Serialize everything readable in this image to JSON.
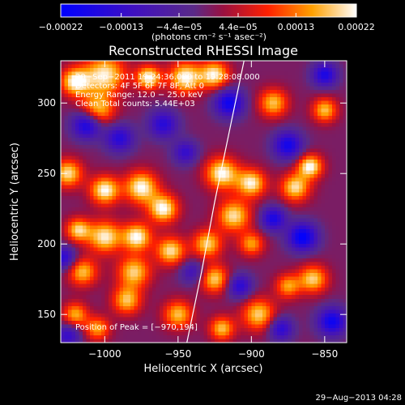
{
  "chart_data": {
    "type": "heatmap",
    "title": "Reconstructed RHESSI Image",
    "xlabel": "Heliocentric X (arcsec)",
    "ylabel": "Heliocentric Y (arcsec)",
    "xlim": [
      -1030,
      -835
    ],
    "ylim": [
      130,
      330
    ],
    "x_ticks": [
      -1000,
      -950,
      -900,
      -850
    ],
    "x_tick_labels": [
      "−1000",
      "−950",
      "−900",
      "−850"
    ],
    "y_ticks": [
      150,
      200,
      250,
      300
    ],
    "y_tick_labels": [
      "150",
      "200",
      "250",
      "300"
    ],
    "colorbar": {
      "range": [
        -0.00022,
        0.00022
      ],
      "tick_values": [
        -0.00022,
        -0.00013,
        -4.4e-05,
        4.4e-05,
        0.00013,
        0.00022
      ],
      "tick_labels": [
        "−0.00022",
        "−0.00013",
        "−4.4e−05",
        "4.4e−05",
        "0.00013",
        "0.00022"
      ],
      "unit_label": "(photons cm⁻² s⁻¹ asec⁻²)",
      "colormap": "blue-purple-red-yellow-white"
    },
    "annotations": [
      "20−Sep−2011 19:24:36.000 to 19:28:08.000",
      "Detectors: 4F 5F 6F 7F 8F, Att 0",
      "Energy Range: 12.0 − 25.0 keV",
      "Clean    Total counts: 5.44E+03",
      "Position of Peak = [−970,194]"
    ],
    "peak": {
      "x": -970,
      "y": 194
    },
    "limb_curve": [
      [
        -944,
        130
      ],
      [
        -934,
        180
      ],
      [
        -925,
        230
      ],
      [
        -915,
        280
      ],
      [
        -905,
        330
      ]
    ],
    "blobs": [
      {
        "x": -1020,
        "y": 315,
        "v": 1.0,
        "s": 7
      },
      {
        "x": -1000,
        "y": 320,
        "v": 0.95,
        "s": 10
      },
      {
        "x": -970,
        "y": 318,
        "v": 1.0,
        "s": 6
      },
      {
        "x": -945,
        "y": 318,
        "v": 1.0,
        "s": 8
      },
      {
        "x": -925,
        "y": 320,
        "v": 0.95,
        "s": 7
      },
      {
        "x": -1005,
        "y": 295,
        "v": 0.85,
        "s": 8
      },
      {
        "x": -1025,
        "y": 250,
        "v": 0.9,
        "s": 7
      },
      {
        "x": -1000,
        "y": 238,
        "v": 1.0,
        "s": 7
      },
      {
        "x": -975,
        "y": 240,
        "v": 1.0,
        "s": 8
      },
      {
        "x": -960,
        "y": 225,
        "v": 1.0,
        "s": 7
      },
      {
        "x": -1000,
        "y": 205,
        "v": 0.95,
        "s": 8
      },
      {
        "x": -978,
        "y": 205,
        "v": 1.0,
        "s": 7
      },
      {
        "x": -1018,
        "y": 210,
        "v": 0.85,
        "s": 6
      },
      {
        "x": -955,
        "y": 195,
        "v": 0.9,
        "s": 7
      },
      {
        "x": -980,
        "y": 180,
        "v": 0.85,
        "s": 8
      },
      {
        "x": -1015,
        "y": 180,
        "v": 0.8,
        "s": 7
      },
      {
        "x": -985,
        "y": 160,
        "v": 0.8,
        "s": 7
      },
      {
        "x": -1020,
        "y": 150,
        "v": 0.75,
        "s": 6
      },
      {
        "x": -950,
        "y": 150,
        "v": 0.8,
        "s": 7
      },
      {
        "x": -1005,
        "y": 140,
        "v": 0.7,
        "s": 6
      },
      {
        "x": -920,
        "y": 250,
        "v": 1.0,
        "s": 8
      },
      {
        "x": -900,
        "y": 243,
        "v": 0.95,
        "s": 7
      },
      {
        "x": -912,
        "y": 220,
        "v": 0.9,
        "s": 8
      },
      {
        "x": -930,
        "y": 200,
        "v": 0.85,
        "s": 7
      },
      {
        "x": -925,
        "y": 175,
        "v": 0.85,
        "s": 7
      },
      {
        "x": -895,
        "y": 150,
        "v": 0.85,
        "s": 8
      },
      {
        "x": -920,
        "y": 140,
        "v": 0.8,
        "s": 6
      },
      {
        "x": -900,
        "y": 200,
        "v": 0.7,
        "s": 6
      },
      {
        "x": -870,
        "y": 240,
        "v": 0.9,
        "s": 7
      },
      {
        "x": -860,
        "y": 255,
        "v": 1.0,
        "s": 6
      },
      {
        "x": -858,
        "y": 175,
        "v": 0.85,
        "s": 7
      },
      {
        "x": -885,
        "y": 300,
        "v": 0.8,
        "s": 7
      },
      {
        "x": -850,
        "y": 295,
        "v": 0.8,
        "s": 6
      },
      {
        "x": -875,
        "y": 170,
        "v": 0.7,
        "s": 6
      },
      {
        "x": -1012,
        "y": 285,
        "v": -0.95,
        "s": 7
      },
      {
        "x": -990,
        "y": 275,
        "v": -0.7,
        "s": 7
      },
      {
        "x": -960,
        "y": 285,
        "v": -0.7,
        "s": 7
      },
      {
        "x": -945,
        "y": 265,
        "v": -0.6,
        "s": 6
      },
      {
        "x": -940,
        "y": 180,
        "v": -0.5,
        "s": 6
      },
      {
        "x": -915,
        "y": 300,
        "v": -0.9,
        "s": 7
      },
      {
        "x": -875,
        "y": 270,
        "v": -0.85,
        "s": 7
      },
      {
        "x": -885,
        "y": 218,
        "v": -0.8,
        "s": 6
      },
      {
        "x": -865,
        "y": 205,
        "v": -1.0,
        "s": 7
      },
      {
        "x": -908,
        "y": 170,
        "v": -0.7,
        "s": 6
      },
      {
        "x": -845,
        "y": 145,
        "v": -0.9,
        "s": 7
      },
      {
        "x": -880,
        "y": 140,
        "v": -0.7,
        "s": 6
      },
      {
        "x": -850,
        "y": 320,
        "v": -0.8,
        "s": 6
      },
      {
        "x": -1028,
        "y": 190,
        "v": -0.7,
        "s": 6
      },
      {
        "x": -1025,
        "y": 135,
        "v": -0.6,
        "s": 6
      }
    ]
  },
  "footer": {
    "date": "29−Aug−2013 04:28"
  }
}
